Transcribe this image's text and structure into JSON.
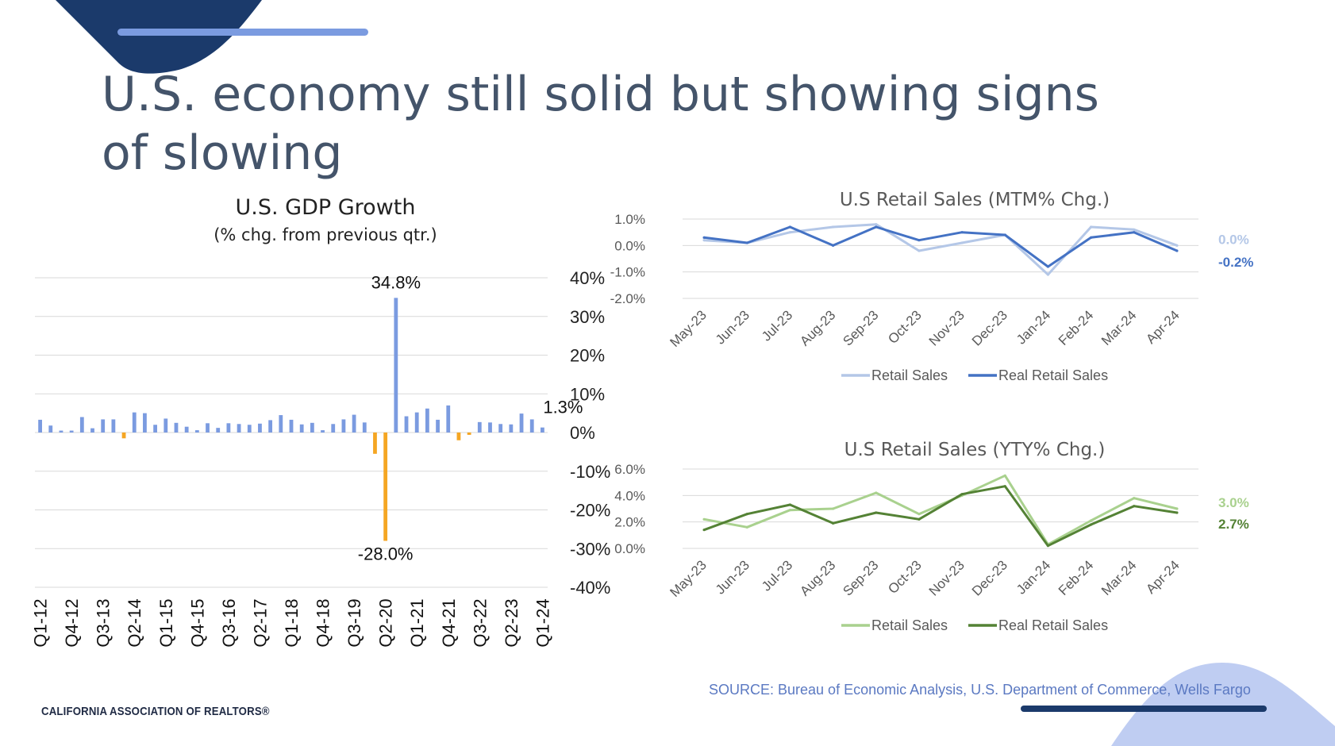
{
  "slide": {
    "title": "U.S. economy still solid but showing signs of slowing",
    "source": "SOURCE: Bureau of Economic Analysis, U.S. Department of Commerce, Wells Fargo",
    "org": "CALIFORNIA ASSOCIATION OF REALTORS®",
    "colors": {
      "title": "#44546A",
      "navy": "#1B3A6B",
      "accent_light": "#7B9BE0",
      "decor_light": "#BFCDF2"
    }
  },
  "chart_data": [
    {
      "type": "bar",
      "title": "U.S. GDP Growth",
      "subtitle": "(% chg. from previous qtr.)",
      "x": [
        "Q1-12",
        "Q2-12",
        "Q3-12",
        "Q4-12",
        "Q1-13",
        "Q2-13",
        "Q3-13",
        "Q4-13",
        "Q1-14",
        "Q2-14",
        "Q3-14",
        "Q4-14",
        "Q1-15",
        "Q2-15",
        "Q3-15",
        "Q4-15",
        "Q1-16",
        "Q2-16",
        "Q3-16",
        "Q4-16",
        "Q1-17",
        "Q2-17",
        "Q3-17",
        "Q4-17",
        "Q1-18",
        "Q2-18",
        "Q3-18",
        "Q4-18",
        "Q1-19",
        "Q2-19",
        "Q3-19",
        "Q4-19",
        "Q1-20",
        "Q2-20",
        "Q3-20",
        "Q4-20",
        "Q1-21",
        "Q2-21",
        "Q3-21",
        "Q4-21",
        "Q1-22",
        "Q2-22",
        "Q3-22",
        "Q4-22",
        "Q1-23",
        "Q2-23",
        "Q3-23",
        "Q4-23",
        "Q1-24"
      ],
      "tick_labels": [
        "Q1-12",
        "Q4-12",
        "Q3-13",
        "Q2-14",
        "Q1-15",
        "Q4-15",
        "Q3-16",
        "Q2-17",
        "Q1-18",
        "Q4-18",
        "Q3-19",
        "Q2-20",
        "Q1-21",
        "Q4-21",
        "Q3-22",
        "Q2-23",
        "Q1-24"
      ],
      "values": [
        3.3,
        1.8,
        0.5,
        0.5,
        4.0,
        1.1,
        3.4,
        3.4,
        -1.5,
        5.2,
        5.0,
        2.0,
        3.6,
        2.5,
        1.5,
        0.6,
        2.4,
        1.2,
        2.4,
        2.2,
        2.0,
        2.3,
        3.2,
        4.5,
        3.3,
        2.1,
        2.5,
        0.6,
        2.2,
        3.4,
        4.6,
        2.6,
        -5.5,
        -28.0,
        34.8,
        4.2,
        5.2,
        6.2,
        3.3,
        7.0,
        -2.0,
        -0.6,
        2.7,
        2.6,
        2.2,
        2.1,
        4.9,
        3.4,
        1.3
      ],
      "colors": {
        "positive": "#7B9BE0",
        "negative": "#F5A623"
      },
      "yticks": [
        "40%",
        "30%",
        "20%",
        "10%",
        "0%",
        "-10%",
        "-20%",
        "-30%",
        "-40%"
      ],
      "ylim": [
        -40,
        40
      ],
      "data_labels": [
        {
          "category": "Q3-20",
          "text": "34.8%"
        },
        {
          "category": "Q2-20",
          "text": "-28.0%"
        },
        {
          "category": "Q1-24",
          "text": "1.3%"
        }
      ],
      "grid": true
    },
    {
      "type": "line",
      "title": "U.S Retail Sales (MTM% Chg.)",
      "x": [
        "May-23",
        "Jun-23",
        "Jul-23",
        "Aug-23",
        "Sep-23",
        "Oct-23",
        "Nov-23",
        "Dec-23",
        "Jan-24",
        "Feb-24",
        "Mar-24",
        "Apr-24"
      ],
      "yticks": [
        "1.0%",
        "0.0%",
        "-1.0%",
        "-2.0%"
      ],
      "ylim": [
        -2,
        1
      ],
      "series": [
        {
          "name": "Retail Sales",
          "color": "#B4C7E7",
          "values": [
            0.2,
            0.1,
            0.5,
            0.7,
            0.8,
            -0.2,
            0.1,
            0.4,
            -1.1,
            0.7,
            0.6,
            0.0
          ],
          "end_label": "0.0%"
        },
        {
          "name": "Real Retail Sales",
          "color": "#4472C4",
          "values": [
            0.3,
            0.1,
            0.7,
            0.0,
            0.7,
            0.2,
            0.5,
            0.4,
            -0.8,
            0.3,
            0.5,
            -0.2
          ],
          "end_label": "-0.2%"
        }
      ],
      "legend": "bottom",
      "grid": true
    },
    {
      "type": "line",
      "title": "U.S Retail Sales (YTY% Chg.)",
      "x": [
        "May-23",
        "Jun-23",
        "Jul-23",
        "Aug-23",
        "Sep-23",
        "Oct-23",
        "Nov-23",
        "Dec-23",
        "Jan-24",
        "Feb-24",
        "Mar-24",
        "Apr-24"
      ],
      "yticks": [
        "6.0%",
        "4.0%",
        "2.0%",
        "0.0%"
      ],
      "ylim": [
        0,
        6
      ],
      "series": [
        {
          "name": "Retail Sales",
          "color": "#A9D18E",
          "values": [
            2.2,
            1.6,
            2.9,
            3.0,
            4.2,
            2.6,
            4.0,
            5.5,
            0.3,
            2.1,
            3.8,
            3.0
          ],
          "end_label": "3.0%"
        },
        {
          "name": "Real Retail Sales",
          "color": "#548235",
          "values": [
            1.4,
            2.6,
            3.3,
            1.9,
            2.7,
            2.2,
            4.1,
            4.7,
            0.2,
            1.8,
            3.2,
            2.7
          ],
          "end_label": "2.7%"
        }
      ],
      "legend": "bottom",
      "grid": true
    }
  ]
}
